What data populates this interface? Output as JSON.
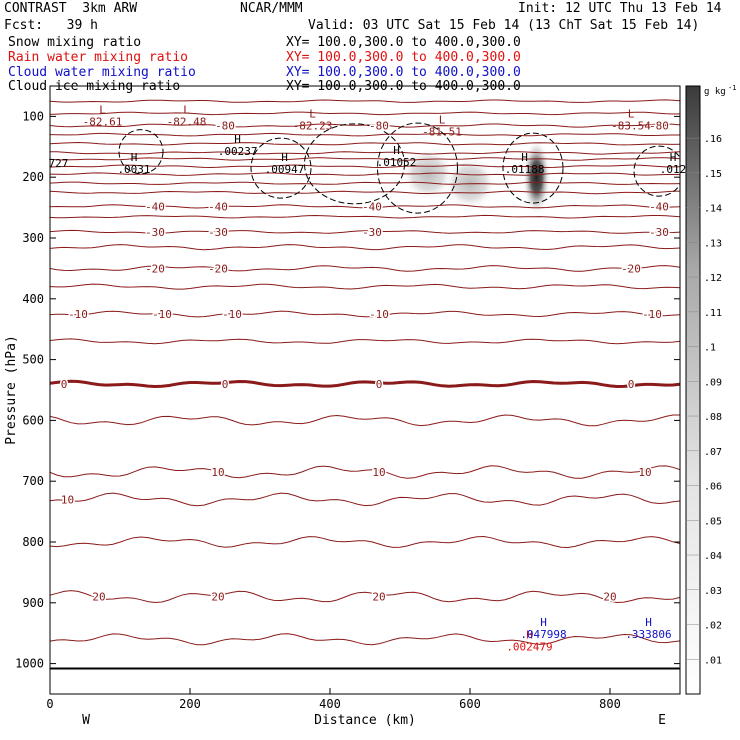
{
  "header": {
    "title_left": "CONTRAST  3km ARW",
    "title_center": "NCAR/MMM",
    "init": "Init: 12 UTC Thu 13 Feb 14",
    "fcst": "Fcst:   39 h",
    "valid": "Valid: 03 UTC Sat 15 Feb 14 (13 ChT Sat 15 Feb 14)"
  },
  "fields": [
    {
      "name": "Snow mixing ratio",
      "xy": "XY= 100.0,300.0 to 400.0,300.0",
      "color": "#000000"
    },
    {
      "name": "Rain water mixing ratio",
      "xy": "XY= 100.0,300.0 to 400.0,300.0",
      "color": "#e01010"
    },
    {
      "name": "Cloud water mixing ratio",
      "xy": "XY= 100.0,300.0 to 400.0,300.0",
      "color": "#1010c8"
    },
    {
      "name": "Cloud ice mixing ratio",
      "xy": "XY= 100.0,300.0 to 400.0,300.0",
      "color": "#000000"
    }
  ],
  "chart_data": {
    "type": "heatmap",
    "description": "Vertical cross-section: temperature contours (brown, C) with snow mixing ratio shading (g/kg)",
    "xlabel": "Distance (km)",
    "ylabel": "Pressure (hPa)",
    "xlim": [
      0,
      900
    ],
    "ylim": [
      1050,
      50
    ],
    "x_ticks": [
      0,
      200,
      400,
      600,
      800
    ],
    "y_ticks": [
      100,
      200,
      300,
      400,
      500,
      600,
      700,
      800,
      900,
      1000
    ],
    "x_end_labels": {
      "left": "W",
      "right": "E"
    },
    "colorbar": {
      "unit": "g kg",
      "unit_exp": "-1",
      "ticks": [
        ".01",
        ".02",
        ".03",
        ".04",
        ".05",
        ".06",
        ".07",
        ".08",
        ".09",
        ".1",
        ".11",
        ".12",
        ".13",
        ".14",
        ".15",
        ".16"
      ]
    },
    "temperature_contours": [
      {
        "value": -80,
        "p": 115,
        "labels_at": [
          250,
          470,
          870
        ]
      },
      {
        "value": -40,
        "p": 248,
        "labels_at": [
          150,
          240,
          460,
          870
        ]
      },
      {
        "value": -30,
        "p": 290,
        "labels_at": [
          150,
          240,
          460,
          870
        ]
      },
      {
        "value": -20,
        "p": 350,
        "labels_at": [
          150,
          240,
          830
        ]
      },
      {
        "value": -10,
        "p": 425,
        "labels_at": [
          40,
          160,
          260,
          470,
          860
        ]
      },
      {
        "value": 0,
        "p": 540,
        "labels_at": [
          20,
          250,
          470,
          830
        ]
      },
      {
        "value": 10,
        "p": 685,
        "labels_at": [
          240,
          470,
          850
        ]
      },
      {
        "value": 10,
        "p": 730,
        "labels_at": [
          25
        ]
      },
      {
        "value": 20,
        "p": 890,
        "labels_at": [
          70,
          240,
          470,
          800
        ]
      }
    ],
    "extrema": [
      {
        "kind": "L",
        "value": "-82.61",
        "x": 75,
        "p": 112,
        "color": "#8b1a1a"
      },
      {
        "kind": "L",
        "value": "-82.48",
        "x": 195,
        "p": 112,
        "color": "#8b1a1a"
      },
      {
        "kind": "L",
        "value": "-82.23",
        "x": 375,
        "p": 118,
        "color": "#8b1a1a"
      },
      {
        "kind": "L",
        "value": "-81.51",
        "x": 560,
        "p": 128,
        "color": "#8b1a1a"
      },
      {
        "kind": "L",
        "value": "-83.54",
        "x": 830,
        "p": 118,
        "color": "#8b1a1a"
      },
      {
        "kind": "H",
        "value": ".00237",
        "x": 268,
        "p": 160,
        "color": "#000000"
      },
      {
        "kind": "H",
        "value": ".0031",
        "x": 120,
        "p": 190,
        "color": "#000000"
      },
      {
        "kind": "H",
        "value": ".00947",
        "x": 335,
        "p": 190,
        "color": "#000000"
      },
      {
        "kind": "H",
        "value": ".01052",
        "x": 495,
        "p": 178,
        "color": "#000000"
      },
      {
        "kind": "H",
        "value": ".01188",
        "x": 678,
        "p": 190,
        "color": "#000000"
      },
      {
        "kind": "H",
        "value": ".012",
        "x": 890,
        "p": 190,
        "color": "#000000"
      },
      {
        "kind": "",
        "value": "727",
        "x": 12,
        "p": 180,
        "color": "#000000"
      },
      {
        "kind": "H",
        "value": ".002479",
        "x": 685,
        "p": 975,
        "color": "#e01010"
      },
      {
        "kind": "H",
        "value": ".047998",
        "x": 705,
        "p": 955,
        "color": "#1010c8"
      },
      {
        "kind": "H",
        "value": ".333806",
        "x": 855,
        "p": 955,
        "color": "#1010c8"
      }
    ],
    "shading": [
      {
        "x": 695,
        "p": 200,
        "value": 0.15
      },
      {
        "x": 540,
        "p": 195,
        "value": 0.03
      },
      {
        "x": 600,
        "p": 210,
        "value": 0.02
      }
    ]
  }
}
